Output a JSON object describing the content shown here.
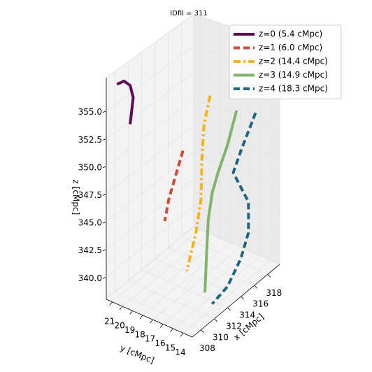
{
  "chart_data": {
    "type": "line3d",
    "title": "IDfil = 311",
    "xlabel": "x [cMpc]",
    "ylabel": "y [cMpc]",
    "zlabel": "z [cMpc]",
    "xlim": [
      306.7,
      319.8
    ],
    "ylim": [
      13.1,
      21.6
    ],
    "zlim": [
      338,
      358
    ],
    "xticks": [
      308,
      310,
      312,
      314,
      316,
      318
    ],
    "yticks": [
      14,
      15,
      16,
      17,
      18,
      19,
      20,
      21
    ],
    "zticks": [
      {
        "value": 340,
        "label": "340.0"
      },
      {
        "value": 342.5,
        "label": "342.5"
      },
      {
        "value": 345,
        "label": "345.0"
      },
      {
        "value": 347.5,
        "label": "347.5"
      },
      {
        "value": 350,
        "label": "350.0"
      },
      {
        "value": 352.5,
        "label": "352.5"
      },
      {
        "value": 355,
        "label": "355.0"
      }
    ],
    "grid": true,
    "legend": "upper right",
    "series": [
      {
        "name": "z=0 (5.4 cMpc)",
        "color": "#5d0c52",
        "linestyle": "solid",
        "x": [
          308,
          308,
          308,
          308,
          308
        ],
        "y": [
          21.4,
          20.7,
          20.1,
          19.8,
          20.1
        ],
        "z": [
          356.9,
          357.4,
          357.2,
          356.2,
          353.7
        ]
      },
      {
        "name": "z=1 (6.0 cMpc)",
        "color": "#cc4a36",
        "linestyle": "dashed",
        "x": [
          310,
          310,
          310,
          310
        ],
        "y": [
          16.2,
          17.0,
          17.6,
          18.0
        ],
        "z": [
          351.7,
          349.0,
          346.9,
          344.8
        ]
      },
      {
        "name": "z=2 (14.4 cMpc)",
        "color": "#f5b316",
        "linestyle": "dashdot",
        "x": [
          313,
          313,
          313,
          313,
          313,
          313
        ],
        "y": [
          15.5,
          16.1,
          16.3,
          16.4,
          16.9,
          17.8
        ],
        "z": [
          355.5,
          352.7,
          349.6,
          345.9,
          342.7,
          338.9
        ]
      },
      {
        "name": "z=3 (14.9 cMpc)",
        "color": "#82b36c",
        "linestyle": "solid",
        "x": [
          315,
          315,
          315,
          315,
          315,
          314,
          313
        ],
        "y": [
          14.2,
          15.1,
          16.0,
          16.6,
          17.0,
          16.5,
          16.0
        ],
        "z": [
          353.7,
          350.3,
          347.6,
          345.5,
          342.9,
          340.6,
          337.7
        ]
      },
      {
        "name": "z=4 (18.3 cMpc)",
        "color": "#1f6580",
        "linestyle": "dashed",
        "x": [
          318,
          318,
          318,
          318,
          318,
          317,
          315,
          311.5
        ],
        "y": [
          14.3,
          15.7,
          16.5,
          15.0,
          15.0,
          15.1,
          15.1,
          14.3
        ],
        "z": [
          352.1,
          348.3,
          345.9,
          343.8,
          341.0,
          339.1,
          337.6,
          338.1
        ]
      }
    ]
  }
}
